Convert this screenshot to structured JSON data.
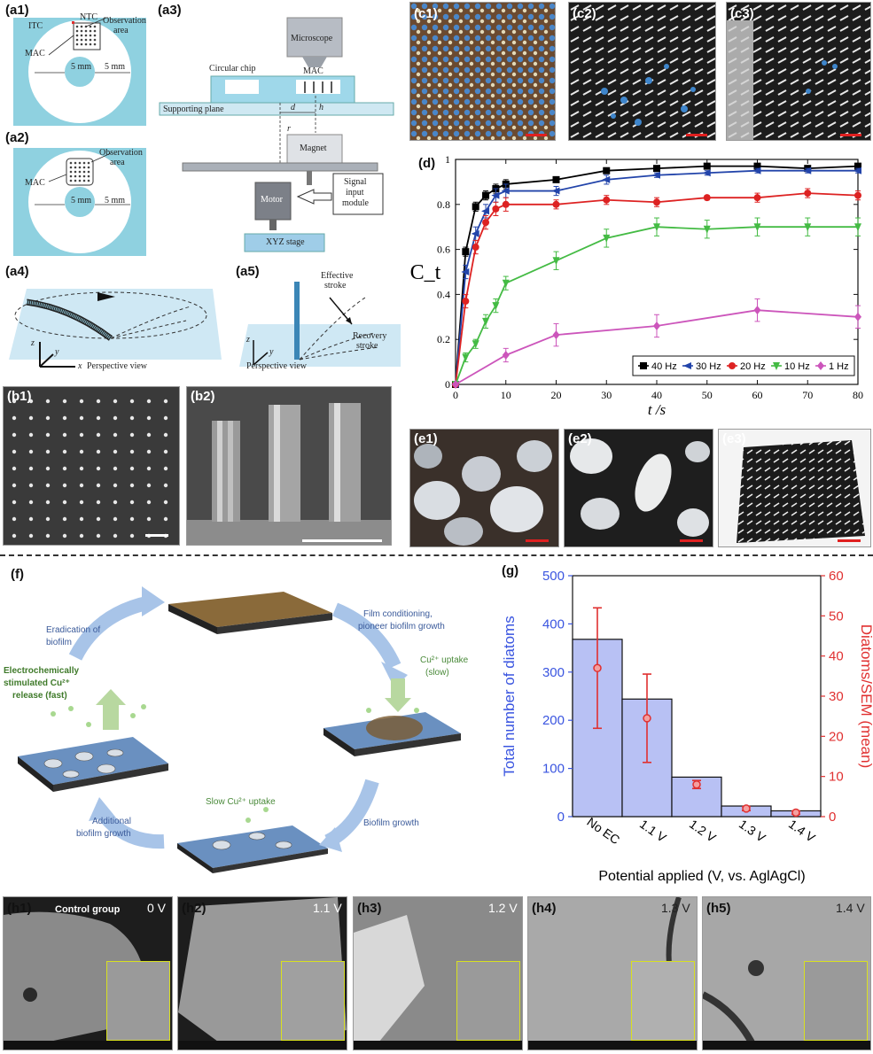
{
  "panels": {
    "a1": "(a1)",
    "a2": "(a2)",
    "a3": "(a3)",
    "a4": "(a4)",
    "a5": "(a5)",
    "b1": "(b1)",
    "b2": "(b2)",
    "c1": "(c1)",
    "c2": "(c2)",
    "c3": "(c3)",
    "d": "(d)",
    "e1": "(e1)",
    "e2": "(e2)",
    "e3": "(e3)",
    "f": "(f)",
    "g": "(g)",
    "h1": "(h1)",
    "h2": "(h2)",
    "h3": "(h3)",
    "h4": "(h4)",
    "h5": "(h5)"
  },
  "a1": {
    "itc": "ITC",
    "ntc": "NTC",
    "obs": "Observation",
    "area": "area",
    "mac": "MAC",
    "dim1": "5 mm",
    "dim2": "5 mm"
  },
  "a2": {
    "obs": "Observation",
    "area": "area",
    "mac": "MAC",
    "dim1": "5 mm",
    "dim2": "5 mm"
  },
  "a3": {
    "microscope": "Microscope",
    "chip": "Circular chip",
    "mac": "MAC",
    "plane": "Supporting plane",
    "d": "d",
    "h": "h",
    "r": "r",
    "magnet": "Magnet",
    "motor": "Motor",
    "signal1": "Signal",
    "signal2": "input",
    "signal3": "module",
    "stage": "XYZ stage"
  },
  "a4": {
    "z": "z",
    "y": "y",
    "x": "x",
    "view": "Perspective view"
  },
  "a5": {
    "effective1": "Effective",
    "effective2": "stroke",
    "recovery1": "Recovery",
    "recovery2": "stroke",
    "z": "z",
    "y": "y",
    "view": "Perspective view"
  },
  "f": {
    "eradication1": "Eradication of",
    "eradication2": "biofilm",
    "film1": "Film conditioning,",
    "film2": "pioneer biofilm growth",
    "cu_slow1": "Cu²⁺ uptake",
    "cu_slow2": "(slow)",
    "electro1": "Electrochemically",
    "electro2": "stimulated Cu²⁺",
    "electro3": "release (fast)",
    "biofilm_growth": "Biofilm growth",
    "slow_uptake": "Slow Cu²⁺ uptake",
    "additional1": "Additional",
    "additional2": "biofilm growth"
  },
  "h": {
    "control": "Control group",
    "v1": "0 V",
    "v2": "1.1 V",
    "v3": "1.2 V",
    "v4": "1.3 V",
    "v5": "1.4 V"
  },
  "chart_data": [
    {
      "type": "line",
      "panel": "d",
      "xlabel": "t /s",
      "ylabel": "C_t",
      "xlim": [
        0,
        80
      ],
      "ylim": [
        0,
        1
      ],
      "xticks": [
        0,
        10,
        20,
        30,
        40,
        50,
        60,
        70,
        80
      ],
      "yticks": [
        0,
        0.2,
        0.4,
        0.6,
        0.8,
        1
      ],
      "ytick_labels": [
        "0",
        "0.2",
        "0.4",
        "0.6",
        "0.8",
        "1"
      ],
      "legend_position": "bottom-right",
      "series": [
        {
          "name": "40 Hz",
          "color": "#000000",
          "marker": "square",
          "x": [
            0,
            2,
            4,
            6,
            8,
            10,
            20,
            30,
            40,
            50,
            60,
            70,
            80
          ],
          "y": [
            0,
            0.59,
            0.79,
            0.84,
            0.87,
            0.89,
            0.91,
            0.95,
            0.96,
            0.97,
            0.97,
            0.96,
            0.97
          ],
          "err": [
            0,
            0.02,
            0.02,
            0.02,
            0.02,
            0.02,
            0.01,
            0.01,
            0.01,
            0.01,
            0.01,
            0.01,
            0.01
          ]
        },
        {
          "name": "30 Hz",
          "color": "#2244aa",
          "marker": "triangle-left",
          "x": [
            0,
            2,
            4,
            6,
            8,
            10,
            20,
            30,
            40,
            50,
            60,
            70,
            80
          ],
          "y": [
            0,
            0.5,
            0.67,
            0.77,
            0.84,
            0.86,
            0.86,
            0.91,
            0.93,
            0.94,
            0.95,
            0.95,
            0.95
          ],
          "err": [
            0,
            0.03,
            0.03,
            0.03,
            0.03,
            0.03,
            0.02,
            0.02,
            0.01,
            0.01,
            0.01,
            0.01,
            0.01
          ]
        },
        {
          "name": "20 Hz",
          "color": "#dd2222",
          "marker": "circle",
          "x": [
            0,
            2,
            4,
            6,
            8,
            10,
            20,
            30,
            40,
            50,
            60,
            70,
            80
          ],
          "y": [
            0,
            0.37,
            0.61,
            0.72,
            0.78,
            0.8,
            0.8,
            0.82,
            0.81,
            0.83,
            0.83,
            0.85,
            0.84
          ],
          "err": [
            0,
            0.03,
            0.03,
            0.03,
            0.03,
            0.03,
            0.02,
            0.02,
            0.02,
            0.01,
            0.02,
            0.02,
            0.02
          ]
        },
        {
          "name": "10 Hz",
          "color": "#44bb44",
          "marker": "triangle-down",
          "x": [
            0,
            2,
            4,
            6,
            8,
            10,
            20,
            30,
            40,
            50,
            60,
            70,
            80
          ],
          "y": [
            0,
            0.12,
            0.18,
            0.28,
            0.35,
            0.45,
            0.55,
            0.65,
            0.7,
            0.69,
            0.7,
            0.7,
            0.7
          ],
          "err": [
            0,
            0.02,
            0.02,
            0.03,
            0.03,
            0.03,
            0.04,
            0.04,
            0.04,
            0.04,
            0.04,
            0.04,
            0.04
          ]
        },
        {
          "name": "1 Hz",
          "color": "#cc55bb",
          "marker": "diamond",
          "x": [
            0,
            10,
            20,
            40,
            60,
            80
          ],
          "y": [
            0,
            0.13,
            0.22,
            0.26,
            0.33,
            0.3
          ],
          "err": [
            0,
            0.03,
            0.05,
            0.05,
            0.05,
            0.05
          ]
        }
      ]
    },
    {
      "type": "bar",
      "panel": "g",
      "categories": [
        "No EC",
        "1.1 V",
        "1.2 V",
        "1.3 V",
        "1.4 V"
      ],
      "xlabel": "Potential applied (V, vs. AglAgCl)",
      "series": [
        {
          "name": "Total number of diatoms",
          "axis": "left",
          "color": "#3a55e0",
          "values": [
            368,
            244,
            82,
            22,
            12
          ]
        },
        {
          "name": "Diatoms/SEM (mean)",
          "axis": "right",
          "color": "#e03030",
          "values": [
            37,
            24.5,
            8,
            2,
            1
          ],
          "err": [
            15,
            11,
            1,
            0.5,
            0.4
          ]
        }
      ],
      "ylabel_left": "Total number of diatoms",
      "ylabel_right": "Diatoms/SEM (mean)",
      "ylim_left": [
        0,
        500
      ],
      "ylim_right": [
        0,
        60
      ],
      "yticks_left": [
        0,
        100,
        200,
        300,
        400,
        500
      ],
      "yticks_right": [
        0,
        10,
        20,
        30,
        40,
        50,
        60
      ]
    }
  ]
}
